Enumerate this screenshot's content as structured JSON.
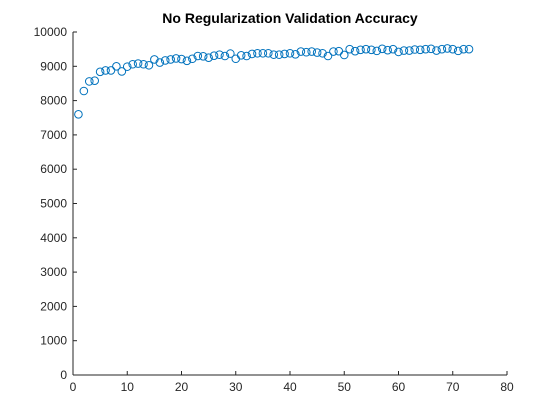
{
  "chart_data": {
    "type": "scatter",
    "title": "No Regularization Validation Accuracy",
    "xlabel": "",
    "ylabel": "",
    "xlim": [
      0,
      80
    ],
    "ylim": [
      0,
      10000
    ],
    "xticks": [
      0,
      10,
      20,
      30,
      40,
      50,
      60,
      70,
      80
    ],
    "yticks": [
      0,
      1000,
      2000,
      3000,
      4000,
      5000,
      6000,
      7000,
      8000,
      9000,
      10000
    ],
    "grid": false,
    "legend": "none",
    "marker": "open-circle",
    "color": "#0072BD",
    "series": [
      {
        "x": [
          1,
          2,
          3,
          4,
          5,
          6,
          7,
          8,
          9,
          10,
          11,
          12,
          13,
          14,
          15,
          16,
          17,
          18,
          19,
          20,
          21,
          22,
          23,
          24,
          25,
          26,
          27,
          28,
          29,
          30,
          31,
          32,
          33,
          34,
          35,
          36,
          37,
          38,
          39,
          40,
          41,
          42,
          43,
          44,
          45,
          46,
          47,
          48,
          49,
          50,
          51,
          52,
          53,
          54,
          55,
          56,
          57,
          58,
          59,
          60,
          61,
          62,
          63,
          64,
          65,
          66,
          67,
          68,
          69,
          70,
          71,
          72,
          73
        ],
        "y": [
          7600,
          8280,
          8560,
          8580,
          8840,
          8880,
          8880,
          9000,
          8850,
          8990,
          9060,
          9080,
          9060,
          9030,
          9200,
          9110,
          9170,
          9200,
          9230,
          9210,
          9160,
          9220,
          9300,
          9290,
          9250,
          9310,
          9340,
          9300,
          9370,
          9220,
          9320,
          9300,
          9360,
          9380,
          9380,
          9380,
          9340,
          9340,
          9360,
          9380,
          9350,
          9430,
          9410,
          9430,
          9400,
          9380,
          9300,
          9430,
          9440,
          9330,
          9500,
          9440,
          9480,
          9500,
          9480,
          9450,
          9510,
          9470,
          9500,
          9420,
          9460,
          9460,
          9490,
          9480,
          9500,
          9510,
          9460,
          9500,
          9520,
          9500,
          9450,
          9500,
          9500
        ]
      }
    ]
  }
}
